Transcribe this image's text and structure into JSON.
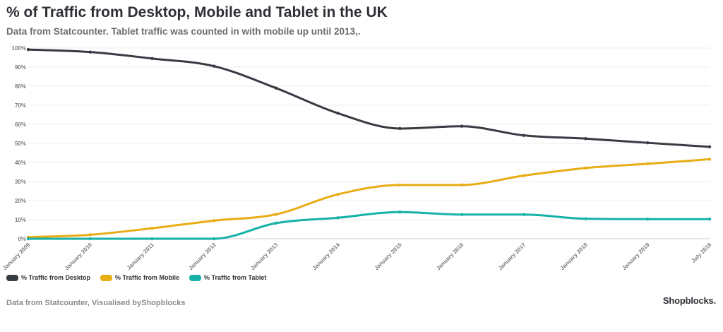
{
  "header": {
    "title": "% of Traffic from Desktop, Mobile and Tablet in the UK",
    "subtitle": "Data from Statcounter. Tablet traffic was counted in with mobile up until 2013,."
  },
  "footer": {
    "credit": "Data from Statcounter, Visualised byShopblocks",
    "brand": "Shopblocks."
  },
  "chart_data": {
    "type": "line",
    "title": "% of Traffic from Desktop, Mobile and Tablet in the UK",
    "subtitle": "Data from Statcounter. Tablet traffic was counted in with mobile up until 2013,.",
    "xlabel": "",
    "ylabel": "",
    "ylim": [
      0,
      100
    ],
    "y_ticks": [
      "0%",
      "10%",
      "20%",
      "30%",
      "40%",
      "50%",
      "60%",
      "70%",
      "80%",
      "90%",
      "100%"
    ],
    "categories": [
      "January 2009",
      "January 2010",
      "January 2011",
      "January 2012",
      "January 2013",
      "January 2014",
      "January 2015",
      "January 2016",
      "January 2017",
      "January 2018",
      "January 2019",
      "July 2019"
    ],
    "grid": true,
    "legend_position": "bottom-left",
    "series": [
      {
        "name": "% Traffic from Desktop",
        "color": "#373b42",
        "values": [
          99.2,
          97.9,
          94.5,
          90.5,
          79,
          65.8,
          57.8,
          59,
          54.2,
          52.5,
          50.3,
          48.2
        ]
      },
      {
        "name": "% Traffic from Mobile",
        "color": "#e8ac15",
        "values": [
          0.8,
          2.1,
          5.5,
          9.5,
          12.8,
          23.3,
          28.2,
          28.2,
          33.1,
          37.1,
          39.3,
          41.7
        ]
      },
      {
        "name": "% Traffic from Tablet",
        "color": "#16b2a8",
        "values": [
          0,
          0,
          0,
          0,
          8.2,
          11,
          14,
          12.7,
          12.7,
          10.5,
          10.3,
          10.3
        ]
      }
    ]
  }
}
